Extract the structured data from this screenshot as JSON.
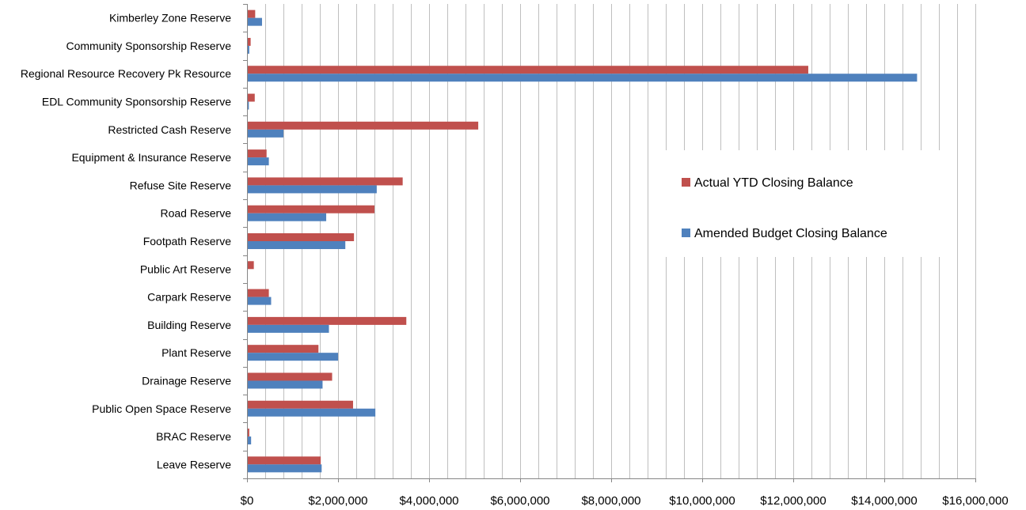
{
  "chart_data": {
    "type": "bar",
    "orientation": "horizontal",
    "categories": [
      "Leave Reserve",
      "BRAC  Reserve",
      "Public Open Space Reserve",
      "Drainage Reserve",
      "Plant Reserve",
      "Building Reserve",
      "Carpark Reserve",
      "Public Art Reserve",
      "Footpath Reserve",
      "Road Reserve",
      "Refuse Site Reserve",
      "Equipment & Insurance Reserve",
      "Restricted Cash Reserve",
      "EDL Community Sponsorship Reserve",
      "Regional Resource Recovery Pk Resource",
      "Community Sponsorship Reserve",
      "Kimberley Zone Reserve"
    ],
    "series": [
      {
        "name": "Actual YTD Closing Balance",
        "color": "#c0504d",
        "values": [
          1620000,
          50000,
          2330000,
          1870000,
          1570000,
          3500000,
          480000,
          150000,
          2350000,
          2800000,
          3420000,
          430000,
          5080000,
          170000,
          12330000,
          80000,
          180000
        ]
      },
      {
        "name": "Amended Budget Closing Balance",
        "color": "#4f81bd",
        "values": [
          1640000,
          90000,
          2820000,
          1660000,
          2000000,
          1800000,
          530000,
          0,
          2160000,
          1740000,
          2850000,
          480000,
          800000,
          40000,
          14720000,
          50000,
          330000
        ]
      }
    ],
    "xlim": [
      0,
      16000000
    ],
    "xticks": [
      0,
      2000000,
      4000000,
      6000000,
      8000000,
      10000000,
      12000000,
      14000000,
      16000000
    ],
    "xtick_labels": [
      "$0",
      "$2,000,000",
      "$4,000,000",
      "$6,000,000",
      "$8,000,000",
      "$10,000,000",
      "$12,000,000",
      "$14,000,000",
      "$16,000,000"
    ],
    "minor_grid_step": 400000,
    "grid": true,
    "legend_position": "right",
    "title": "",
    "xlabel": "",
    "ylabel": ""
  }
}
